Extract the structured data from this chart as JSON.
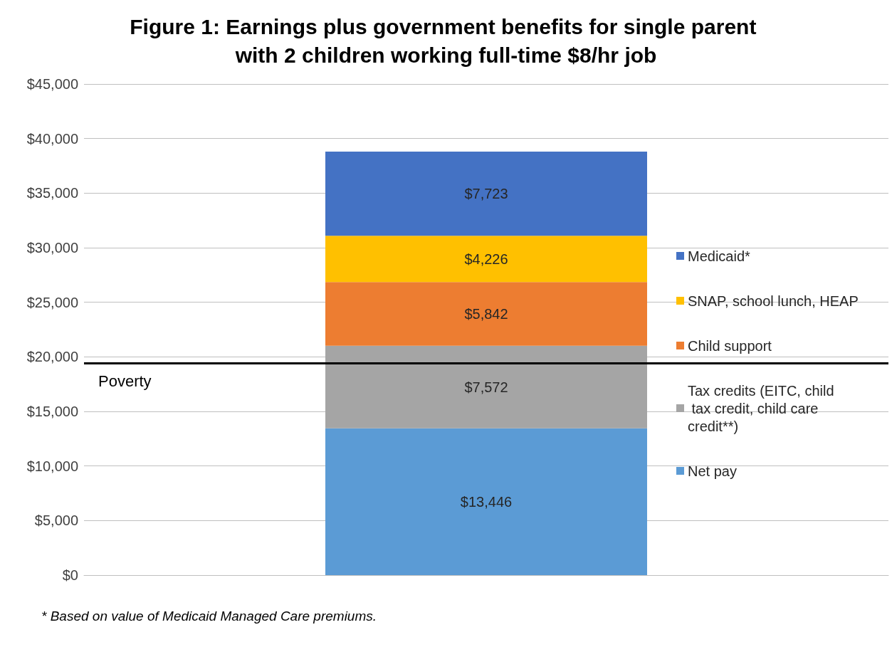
{
  "chart_data": {
    "type": "bar",
    "title": "Figure 1: Earnings plus government benefits for single parent with 2 children working full-time $8/hr job",
    "categories": [
      null
    ],
    "stacked": true,
    "series": [
      {
        "name": "Net pay",
        "color": "#5b9bd5",
        "values": [
          13446
        ],
        "value_labels": [
          "$13,446"
        ]
      },
      {
        "name": "Tax credits (EITC, child tax credit, child care credit**)",
        "color": "#a5a5a5",
        "values": [
          7572
        ],
        "value_labels": [
          "$7,572"
        ]
      },
      {
        "name": "Child support",
        "color": "#ed7d31",
        "values": [
          5842
        ],
        "value_labels": [
          "$5,842"
        ]
      },
      {
        "name": "SNAP, school lunch, HEAP",
        "color": "#ffc000",
        "values": [
          4226
        ],
        "value_labels": [
          "$4,226"
        ]
      },
      {
        "name": "Medicaid*",
        "color": "#4472c4",
        "values": [
          7723
        ],
        "value_labels": [
          "$7,723"
        ]
      }
    ],
    "ylim": [
      0,
      45000
    ],
    "yticks": [
      {
        "value": 0,
        "label": "$0"
      },
      {
        "value": 5000,
        "label": "$5,000"
      },
      {
        "value": 10000,
        "label": "$10,000"
      },
      {
        "value": 15000,
        "label": "$15,000"
      },
      {
        "value": 20000,
        "label": "$20,000"
      },
      {
        "value": 25000,
        "label": "$25,000"
      },
      {
        "value": 30000,
        "label": "$30,000"
      },
      {
        "value": 35000,
        "label": "$35,000"
      },
      {
        "value": 40000,
        "label": "$40,000"
      },
      {
        "value": 45000,
        "label": "$45,000"
      }
    ],
    "ref_lines": [
      {
        "axis": "y",
        "value": 19400,
        "label": "Poverty",
        "color": "#000000"
      }
    ],
    "grid": "y",
    "legend": "right",
    "annotations": [
      "* Based on value of Medicaid Managed Care premiums."
    ]
  }
}
